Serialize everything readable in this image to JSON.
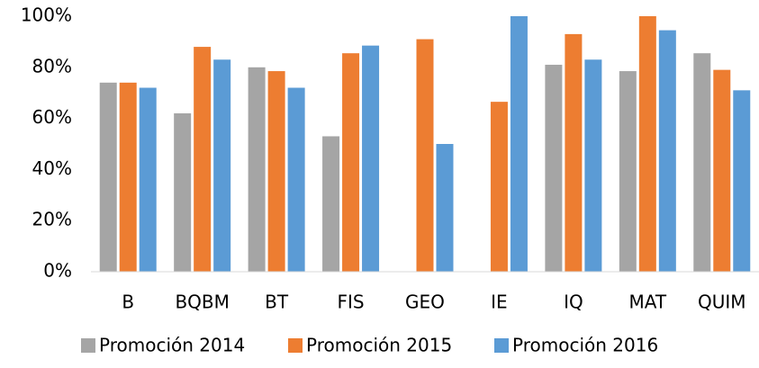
{
  "chart_data": {
    "type": "bar",
    "categories": [
      "B",
      "BQBM",
      "BT",
      "FIS",
      "GEO",
      "IE",
      "IQ",
      "MAT",
      "QUIM"
    ],
    "series": [
      {
        "name": "Promoción 2014",
        "color": "#a5a5a5",
        "values": [
          74,
          62,
          80,
          53,
          null,
          null,
          81,
          78.5,
          85.5
        ]
      },
      {
        "name": "Promoción 2015",
        "color": "#ed7d31",
        "values": [
          74,
          88,
          78.5,
          85.5,
          91,
          66.5,
          93,
          100,
          79
        ]
      },
      {
        "name": "Promoción 2016",
        "color": "#5b9bd5",
        "values": [
          72,
          83,
          72,
          88.5,
          50,
          100,
          83,
          94.5,
          71
        ]
      }
    ],
    "ylim": [
      0,
      100
    ],
    "yticks": [
      {
        "value": 0,
        "label": "0%"
      },
      {
        "value": 20,
        "label": "20%"
      },
      {
        "value": 40,
        "label": "40%"
      },
      {
        "value": 60,
        "label": "60%"
      },
      {
        "value": 80,
        "label": "80%"
      },
      {
        "value": 100,
        "label": "100%"
      }
    ],
    "grid": false,
    "legend": "bottom"
  }
}
